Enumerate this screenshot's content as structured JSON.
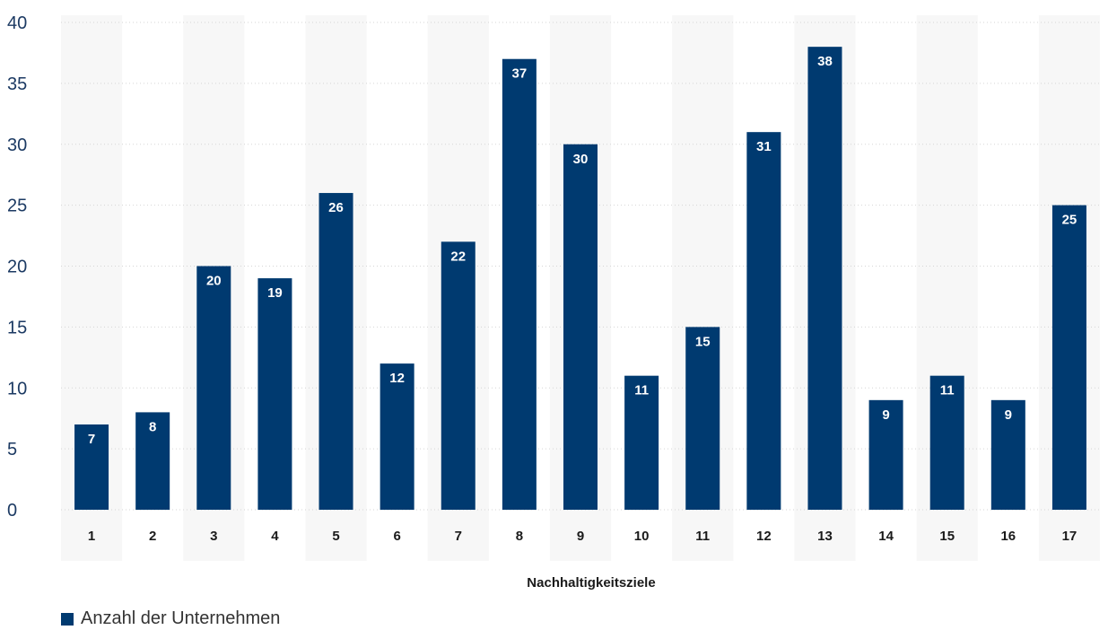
{
  "chart_data": {
    "type": "bar",
    "categories": [
      "1",
      "2",
      "3",
      "4",
      "5",
      "6",
      "7",
      "8",
      "9",
      "10",
      "11",
      "12",
      "13",
      "14",
      "15",
      "16",
      "17"
    ],
    "series": [
      {
        "name": "Anzahl der Unternehmen",
        "values": [
          7,
          8,
          20,
          19,
          26,
          12,
          22,
          37,
          30,
          11,
          15,
          31,
          38,
          9,
          11,
          9,
          25
        ]
      }
    ],
    "title": "",
    "xlabel": "Nachhaltigkeitsziele",
    "ylabel": "",
    "ylim": [
      0,
      40
    ],
    "yticks": [
      0,
      5,
      10,
      15,
      20,
      25,
      30,
      35,
      40
    ],
    "grid": true,
    "legend_position": "bottom-left",
    "colors": {
      "bar": "#003a70",
      "band": "#f7f7f7",
      "grid": "#d5d5d5"
    }
  }
}
